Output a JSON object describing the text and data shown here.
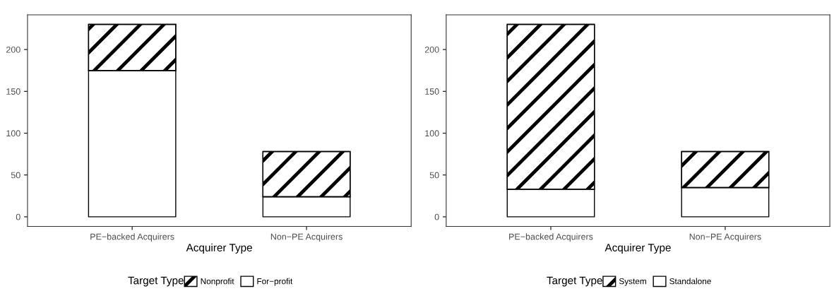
{
  "chart_data": [
    {
      "type": "bar",
      "stacked": true,
      "xlabel": "Acquirer Type",
      "legend_title": "Target Type",
      "legend": "bottom",
      "grid": false,
      "categories": [
        "PE−backed Acquirers",
        "Non−PE Acquirers"
      ],
      "ylim": [
        -11.5,
        241.5
      ],
      "yticks": [
        0,
        50,
        100,
        150,
        200
      ],
      "series": [
        {
          "name": "For−profit",
          "color": "#ffffff",
          "values": [
            175,
            24
          ]
        },
        {
          "name": "Nonprofit",
          "color": "#000000",
          "values": [
            55,
            54
          ]
        }
      ]
    },
    {
      "type": "bar",
      "stacked": true,
      "xlabel": "Acquirer Type",
      "legend_title": "Target Type",
      "legend": "bottom",
      "grid": false,
      "categories": [
        "PE−backed Acquirers",
        "Non−PE Acquirers"
      ],
      "ylim": [
        -11.5,
        241.5
      ],
      "yticks": [
        0,
        50,
        100,
        150,
        200
      ],
      "series": [
        {
          "name": "Standalone",
          "color": "#ffffff",
          "values": [
            33,
            35
          ]
        },
        {
          "name": "System",
          "color": "#000000",
          "values": [
            197,
            43
          ]
        }
      ]
    }
  ]
}
